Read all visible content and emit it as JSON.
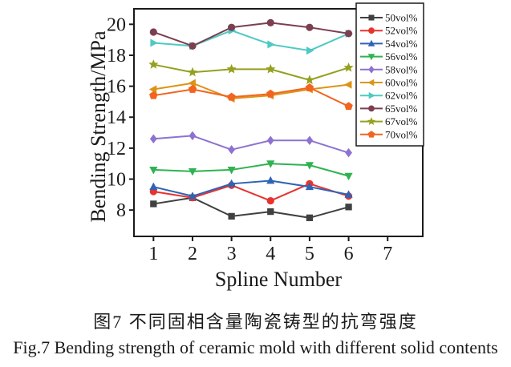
{
  "figure": {
    "caption_cn": "图7 不同固相含量陶瓷铸型的抗弯强度",
    "caption_en": "Fig.7  Bending strength of ceramic mold with different solid contents"
  },
  "chart_data": {
    "type": "line",
    "title": "",
    "xlabel": "Spline Number",
    "ylabel": "Bending Strength/MPa",
    "x": [
      1,
      2,
      3,
      4,
      5,
      6
    ],
    "x_ticks": [
      1,
      2,
      3,
      4,
      5,
      6,
      7
    ],
    "y_ticks": [
      8,
      10,
      12,
      14,
      16,
      18,
      20
    ],
    "xlim": [
      0.5,
      7.9
    ],
    "ylim": [
      6.3,
      21.0
    ],
    "grid": false,
    "legend_position": "top-right",
    "legend_border": true,
    "axis_color": "#1a1a1a",
    "series": [
      {
        "name": "50vol%",
        "color": "#404040",
        "marker": "square",
        "values": [
          8.4,
          8.8,
          7.6,
          7.9,
          7.5,
          8.2
        ]
      },
      {
        "name": "52vol%",
        "color": "#e8322e",
        "marker": "circle",
        "values": [
          9.2,
          8.8,
          9.6,
          8.6,
          9.7,
          8.9
        ]
      },
      {
        "name": "54vol%",
        "color": "#2f63b5",
        "marker": "triangle-up",
        "values": [
          9.5,
          8.9,
          9.7,
          9.9,
          9.5,
          9.0
        ]
      },
      {
        "name": "56vol%",
        "color": "#2fb350",
        "marker": "triangle-down",
        "values": [
          10.6,
          10.5,
          10.6,
          11.0,
          10.9,
          10.2
        ]
      },
      {
        "name": "58vol%",
        "color": "#8d72d2",
        "marker": "diamond",
        "values": [
          12.6,
          12.8,
          11.9,
          12.5,
          12.5,
          11.7
        ]
      },
      {
        "name": "60vol%",
        "color": "#dc9414",
        "marker": "triangle-left",
        "values": [
          15.8,
          16.2,
          15.2,
          15.4,
          15.8,
          16.1
        ]
      },
      {
        "name": "62vol%",
        "color": "#4ec9c3",
        "marker": "triangle-right",
        "values": [
          18.8,
          18.6,
          19.6,
          18.7,
          18.3,
          19.4
        ]
      },
      {
        "name": "65vol%",
        "color": "#7b3f50",
        "marker": "circle",
        "values": [
          19.5,
          18.6,
          19.8,
          20.1,
          19.8,
          19.4
        ]
      },
      {
        "name": "67vol%",
        "color": "#95a01e",
        "marker": "star",
        "values": [
          17.4,
          16.9,
          17.1,
          17.1,
          16.4,
          17.2
        ]
      },
      {
        "name": "70vol%",
        "color": "#f2641f",
        "marker": "pentagon",
        "values": [
          15.4,
          15.8,
          15.3,
          15.5,
          15.9,
          14.7
        ]
      }
    ]
  }
}
